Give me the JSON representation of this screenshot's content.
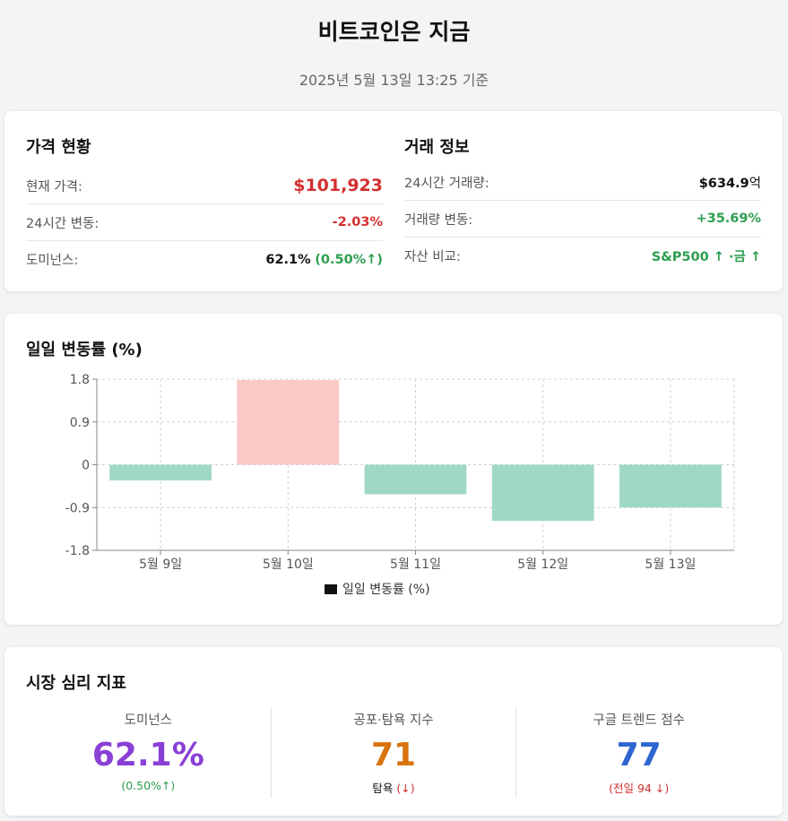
{
  "header": {
    "title": "비트코인은 지금",
    "subtitle": "2025년 5월 13일 13:25 기준"
  },
  "price_status": {
    "title": "가격 현황",
    "rows": [
      {
        "label": "현재 가격:",
        "value": "$101,923"
      },
      {
        "label": "24시간 변동:",
        "value": "-2.03%"
      },
      {
        "label": "도미넌스:",
        "value": "62.1%",
        "extra": "(0.50%↑)"
      }
    ]
  },
  "trade_info": {
    "title": "거래 정보",
    "rows": [
      {
        "label": "24시간 거래량:",
        "value": "$634.9",
        "unit": "억"
      },
      {
        "label": "거래량 변동:",
        "value": "+35.69%"
      },
      {
        "label": "자산 비교:",
        "value": "S&P500 ↑ ·금 ↑"
      }
    ]
  },
  "chart_section": {
    "title": "일일 변동률 (%)"
  },
  "chart_data": {
    "type": "bar",
    "categories": [
      "5월 9일",
      "5월 10일",
      "5월 11일",
      "5월 12일",
      "5월 13일"
    ],
    "series": [
      {
        "name": "일일 변동률 (%)",
        "values": [
          -0.33,
          1.78,
          -0.62,
          -1.18,
          -0.9
        ]
      }
    ],
    "ylim": [
      -1.8,
      1.8
    ],
    "yticks": [
      "1.8",
      "0.9",
      "0",
      "-0.9",
      "-1.8"
    ],
    "grid": true,
    "legend_position": "bottom",
    "colors": {
      "positive": "#f8c9c6",
      "negative": "#9fd8c4",
      "legend_swatch": "#111111"
    }
  },
  "sentiment": {
    "title": "시장 심리 지표",
    "gauges": [
      {
        "label": "도미넌스",
        "value": "62.1%",
        "note": "(0.50%↑)"
      },
      {
        "label": "공포·탐욕 지수",
        "value": "71",
        "note_main": "탐욕",
        "note_arrow": "(↓)"
      },
      {
        "label": "구글 트렌드 점수",
        "value": "77",
        "note": "(전일 94 ↓)"
      }
    ]
  }
}
